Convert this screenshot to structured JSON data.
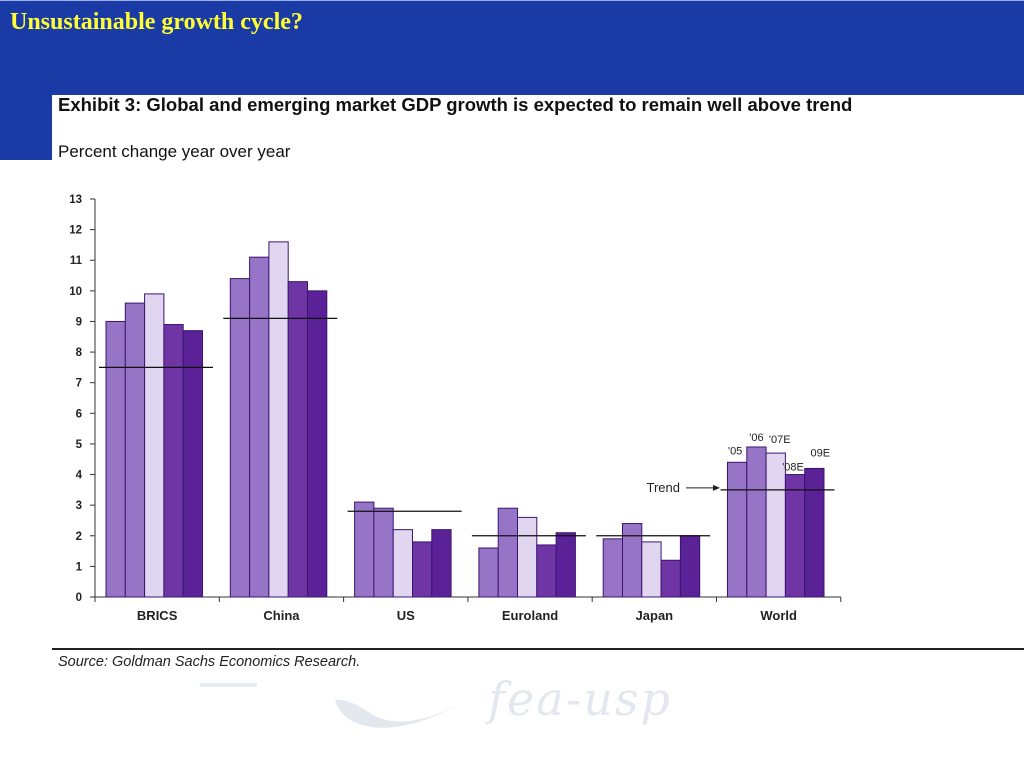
{
  "slide": {
    "title": "Unsustainable growth cycle?"
  },
  "exhibit": {
    "title": "Exhibit 3:  Global and emerging market GDP growth is expected to remain well above trend",
    "subtitle": "Percent change year over year",
    "source": "Source: Goldman Sachs Economics Research."
  },
  "watermark": {
    "text": "fea-usp"
  },
  "colors": {
    "banner": "#1a3aa6",
    "title_text": "#ffff33",
    "series": [
      "#9775c6",
      "#9775c6",
      "#e0d6f0",
      "#6f35a5",
      "#5b2196"
    ]
  },
  "chart_data": {
    "type": "bar",
    "categories": [
      "BRICS",
      "China",
      "US",
      "Euroland",
      "Japan",
      "World"
    ],
    "series": [
      {
        "name": "'05",
        "values": [
          9.0,
          10.4,
          3.1,
          1.6,
          1.9,
          4.4
        ]
      },
      {
        "name": "'06",
        "values": [
          9.6,
          11.1,
          2.9,
          2.9,
          2.4,
          4.9
        ]
      },
      {
        "name": "'07E",
        "values": [
          9.9,
          11.6,
          2.2,
          2.6,
          1.8,
          4.7
        ]
      },
      {
        "name": "'08E",
        "values": [
          8.9,
          10.3,
          1.8,
          1.7,
          1.2,
          4.0
        ]
      },
      {
        "name": "09E",
        "values": [
          8.7,
          10.0,
          2.2,
          2.1,
          2.0,
          4.2
        ]
      }
    ],
    "trend": [
      7.5,
      9.1,
      2.8,
      2.0,
      2.0,
      3.5
    ],
    "trend_label": "Trend",
    "yticks": [
      0,
      1,
      2,
      3,
      4,
      5,
      6,
      7,
      8,
      9,
      10,
      11,
      12,
      13
    ],
    "ylim": [
      0,
      13
    ],
    "grid": false
  }
}
